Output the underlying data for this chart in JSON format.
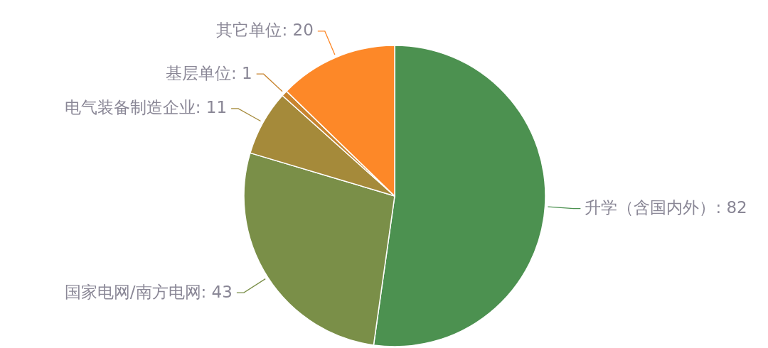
{
  "chart_data": {
    "type": "pie",
    "categories": [
      "升学（含国内外）",
      "国家电网/南方电网",
      "电气装备制造企业",
      "基层单位",
      "其它单位"
    ],
    "values": [
      82,
      43,
      11,
      1,
      20
    ],
    "colors": [
      "#4c9150",
      "#7a8f48",
      "#a58a3a",
      "#c8842e",
      "#fd8828"
    ],
    "value_labels": [
      ": 82",
      ": 43",
      ": 11",
      ": 1",
      ": 20"
    ]
  }
}
